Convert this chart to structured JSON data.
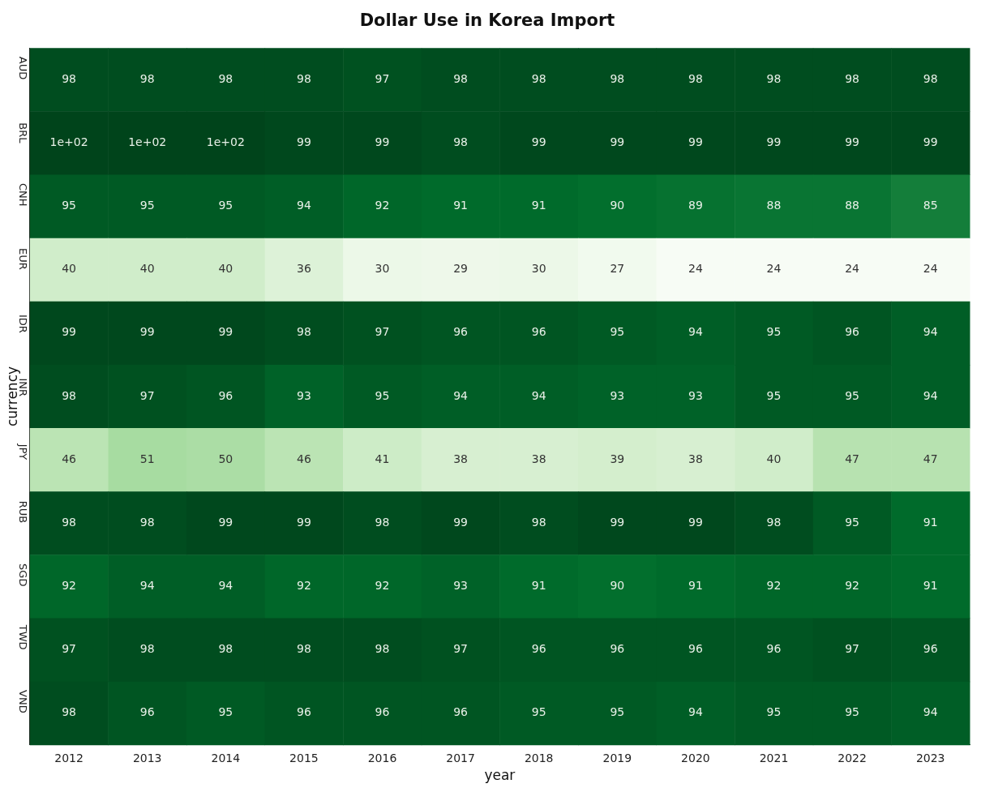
{
  "chart_data": {
    "type": "heatmap",
    "title": "Dollar Use in Korea Import",
    "xlabel": "year",
    "ylabel": "currency",
    "categories": [
      "2012",
      "2013",
      "2014",
      "2015",
      "2016",
      "2017",
      "2018",
      "2019",
      "2020",
      "2021",
      "2022",
      "2023"
    ],
    "y_categories": [
      "AUD",
      "BRL",
      "CNH",
      "EUR",
      "IDR",
      "INR",
      "JPY",
      "RUB",
      "SGD",
      "TWD",
      "VND"
    ],
    "cells": [
      [
        98,
        98,
        98,
        98,
        97,
        98,
        98,
        98,
        98,
        98,
        98,
        98
      ],
      [
        100,
        100,
        100,
        99,
        99,
        98,
        99,
        99,
        99,
        99,
        99,
        99
      ],
      [
        95,
        95,
        95,
        94,
        92,
        91,
        91,
        90,
        89,
        88,
        88,
        85
      ],
      [
        40,
        40,
        40,
        36,
        30,
        29,
        30,
        27,
        24,
        24,
        24,
        24
      ],
      [
        99,
        99,
        99,
        98,
        97,
        96,
        96,
        95,
        94,
        95,
        96,
        94
      ],
      [
        98,
        97,
        96,
        93,
        95,
        94,
        94,
        93,
        93,
        95,
        95,
        94
      ],
      [
        46,
        51,
        50,
        46,
        41,
        38,
        38,
        39,
        38,
        40,
        47,
        47
      ],
      [
        98,
        98,
        99,
        99,
        98,
        99,
        98,
        99,
        99,
        98,
        95,
        91
      ],
      [
        92,
        94,
        94,
        92,
        92,
        93,
        91,
        90,
        91,
        92,
        92,
        91
      ],
      [
        97,
        98,
        98,
        98,
        98,
        97,
        96,
        96,
        96,
        96,
        97,
        96
      ],
      [
        98,
        96,
        95,
        96,
        96,
        96,
        95,
        95,
        94,
        95,
        95,
        94
      ]
    ],
    "cell_labels": [
      [
        "98",
        "98",
        "98",
        "98",
        "97",
        "98",
        "98",
        "98",
        "98",
        "98",
        "98",
        "98"
      ],
      [
        "1e+02",
        "1e+02",
        "1e+02",
        "99",
        "99",
        "98",
        "99",
        "99",
        "99",
        "99",
        "99",
        "99"
      ],
      [
        "95",
        "95",
        "95",
        "94",
        "92",
        "91",
        "91",
        "90",
        "89",
        "88",
        "88",
        "85"
      ],
      [
        "40",
        "40",
        "40",
        "36",
        "30",
        "29",
        "30",
        "27",
        "24",
        "24",
        "24",
        "24"
      ],
      [
        "99",
        "99",
        "99",
        "98",
        "97",
        "96",
        "96",
        "95",
        "94",
        "95",
        "96",
        "94"
      ],
      [
        "98",
        "97",
        "96",
        "93",
        "95",
        "94",
        "94",
        "93",
        "93",
        "95",
        "95",
        "94"
      ],
      [
        "46",
        "51",
        "50",
        "46",
        "41",
        "38",
        "38",
        "39",
        "38",
        "40",
        "47",
        "47"
      ],
      [
        "98",
        "98",
        "99",
        "99",
        "98",
        "99",
        "98",
        "99",
        "99",
        "98",
        "95",
        "91"
      ],
      [
        "92",
        "94",
        "94",
        "92",
        "92",
        "93",
        "91",
        "90",
        "91",
        "92",
        "92",
        "91"
      ],
      [
        "97",
        "98",
        "98",
        "98",
        "98",
        "97",
        "96",
        "96",
        "96",
        "96",
        "97",
        "96"
      ],
      [
        "98",
        "96",
        "95",
        "96",
        "96",
        "96",
        "95",
        "95",
        "94",
        "95",
        "95",
        "94"
      ]
    ],
    "data_labels": true
  }
}
